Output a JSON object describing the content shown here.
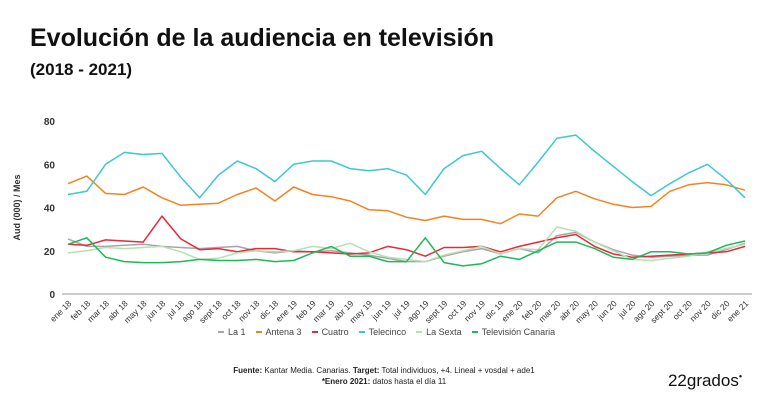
{
  "chart_data": {
    "type": "line",
    "title": "Evolución de la audiencia en televisión",
    "subtitle": "(2018 - 2021)",
    "xlabel": "",
    "ylabel": "Aud (000) / Mes",
    "ylim": [
      0,
      80
    ],
    "yticks": [
      0,
      20,
      40,
      60,
      80
    ],
    "grid": false,
    "legend": "bottom",
    "categories": [
      "ene 18",
      "feb 18",
      "mar 18",
      "abr 18",
      "may 18",
      "jun 18",
      "jul 18",
      "ago 18",
      "sept 18",
      "oct 18",
      "nov 18",
      "dic 18",
      "ene 19",
      "feb 19",
      "mar 19",
      "abr 19",
      "may 19",
      "jun 19",
      "jul 19",
      "ago 19",
      "sept 19",
      "oct 19",
      "nov 19",
      "dic 19",
      "ene 20",
      "feb 20",
      "mar 20",
      "abr 20",
      "may 20",
      "jun 20",
      "jul 20",
      "ago 20",
      "sept 20",
      "oct 20",
      "nov 20",
      "dic 20",
      "ene 21"
    ],
    "series": [
      {
        "name": "La 1",
        "color": "#a6a6a6",
        "values": [
          25.5,
          22,
          22,
          22.5,
          23,
          22,
          21.5,
          21,
          21.5,
          22,
          20,
          19,
          20,
          19.5,
          20,
          19,
          18,
          16.5,
          15,
          15,
          17.5,
          19.5,
          21,
          18.5,
          21,
          19,
          27,
          28.5,
          24,
          20.5,
          18,
          17,
          17.5,
          18,
          18,
          20.5,
          23.5
        ]
      },
      {
        "name": "Antena 3",
        "color": "#f58220",
        "values": [
          51,
          54.5,
          46.5,
          46,
          49.5,
          44.5,
          41,
          41.5,
          42,
          46,
          49,
          43,
          49.5,
          46,
          45,
          43,
          39,
          38.5,
          35.5,
          34,
          36,
          34.5,
          34.5,
          32.5,
          37,
          36,
          44.5,
          47.5,
          44,
          41.5,
          40,
          40.5,
          47.5,
          50.5,
          51.5,
          50.5,
          48
        ]
      },
      {
        "name": "Cuatro",
        "color": "#e8283c",
        "values": [
          23,
          22.5,
          25,
          24.5,
          24,
          36,
          25.5,
          20.5,
          21,
          19.5,
          21,
          21,
          19.5,
          19.5,
          19,
          18.5,
          19,
          22,
          20.5,
          17.5,
          21.5,
          21.5,
          22,
          19.5,
          22,
          24,
          26,
          27.5,
          22,
          18.5,
          17,
          17.5,
          18,
          18.5,
          19,
          19.5,
          22
        ]
      },
      {
        "name": "Telecinco",
        "color": "#3cc8d2",
        "values": [
          46,
          47.5,
          60,
          65.5,
          64.5,
          65,
          54,
          44.5,
          55,
          61.5,
          58,
          52,
          60,
          61.5,
          61.5,
          58,
          57,
          58,
          55,
          46,
          58,
          64,
          66,
          58,
          50.5,
          61,
          72,
          73.5,
          66,
          59,
          52,
          45.5,
          51,
          56,
          60,
          53,
          44.5
        ]
      },
      {
        "name": "La Sexta",
        "color": "#b5e0b0",
        "values": [
          19,
          20,
          21.5,
          21,
          21.5,
          22,
          19.5,
          16,
          16.5,
          19,
          20,
          19.5,
          20,
          22,
          21,
          23.5,
          19.5,
          17,
          16,
          15,
          18,
          20,
          22,
          18.5,
          21,
          20.5,
          31,
          29,
          24,
          20,
          16,
          15.5,
          16.5,
          17.5,
          19.5,
          21,
          23
        ]
      },
      {
        "name": "Televisión Canaria",
        "color": "#1db954",
        "values": [
          23,
          26,
          17,
          15,
          14.5,
          14.5,
          15,
          16,
          15.5,
          15.5,
          16,
          15,
          15.5,
          19,
          22,
          17.5,
          17.5,
          15,
          15,
          26,
          14.5,
          13,
          14,
          17.5,
          16,
          20,
          24,
          24,
          21,
          17,
          16,
          19.5,
          19.5,
          18.5,
          19,
          22.5,
          24.5
        ]
      }
    ]
  },
  "footer": {
    "source_label": "Fuente:",
    "source_text": " Kantar Media. Canarias. ",
    "target_label": "Target:",
    "target_text": " Total individuos, +4. Lineal + vosdal + ade1",
    "note_label": "*Enero 2021:",
    "note_text": " datos hasta el día 11"
  },
  "logo": "22grados"
}
